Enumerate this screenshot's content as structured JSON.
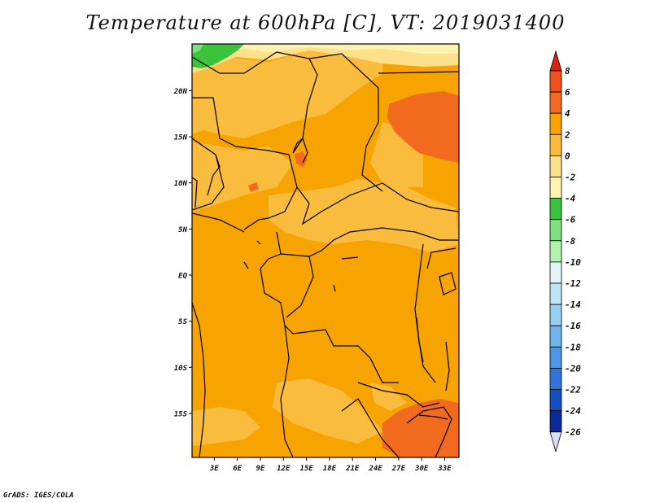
{
  "title": "Temperature at 600hPa [C], VT: 2019031400",
  "credit": "GrADS: IGES/COLA",
  "map": {
    "lat_ticks": [
      {
        "label": "20N",
        "lat": 20
      },
      {
        "label": "15N",
        "lat": 15
      },
      {
        "label": "10N",
        "lat": 10
      },
      {
        "label": "5N",
        "lat": 5
      },
      {
        "label": "EQ",
        "lat": 0
      },
      {
        "label": "5S",
        "lat": -5
      },
      {
        "label": "10S",
        "lat": -10
      },
      {
        "label": "15S",
        "lat": -15
      }
    ],
    "lon_ticks": [
      {
        "label": "3E",
        "lon": 3
      },
      {
        "label": "6E",
        "lon": 6
      },
      {
        "label": "9E",
        "lon": 9
      },
      {
        "label": "12E",
        "lon": 12
      },
      {
        "label": "15E",
        "lon": 15
      },
      {
        "label": "18E",
        "lon": 18
      },
      {
        "label": "21E",
        "lon": 21
      },
      {
        "label": "24E",
        "lon": 24
      },
      {
        "label": "27E",
        "lon": 27
      },
      {
        "label": "30E",
        "lon": 30
      },
      {
        "label": "33E",
        "lon": 33
      }
    ],
    "colors": {
      "base": "#f7a400",
      "warm_low": "#f9bc3c",
      "warm_high": "#f26a1e",
      "pale": "#fde08a",
      "paler": "#fff3b0",
      "green": "#3cc33c",
      "land_border": "#000000"
    }
  },
  "colorbar": {
    "labels": [
      "8",
      "6",
      "4",
      "2",
      "0",
      "-2",
      "-4",
      "-6",
      "-8",
      "-10",
      "-12",
      "-14",
      "-16",
      "-18",
      "-20",
      "-22",
      "-24",
      "-26"
    ],
    "colors": [
      "#d8230f",
      "#f0501a",
      "#f26a1e",
      "#f7a400",
      "#f9bc3c",
      "#fde08a",
      "#fff3b0",
      "#3cc33c",
      "#7ee07e",
      "#b6f0b0",
      "#e2f6f8",
      "#bfe4f6",
      "#9ad0f4",
      "#6fb4ee",
      "#4b96e6",
      "#2f76d8",
      "#1650c0",
      "#0a2a9a",
      "#0c0c60",
      "#dcdcf4"
    ]
  }
}
